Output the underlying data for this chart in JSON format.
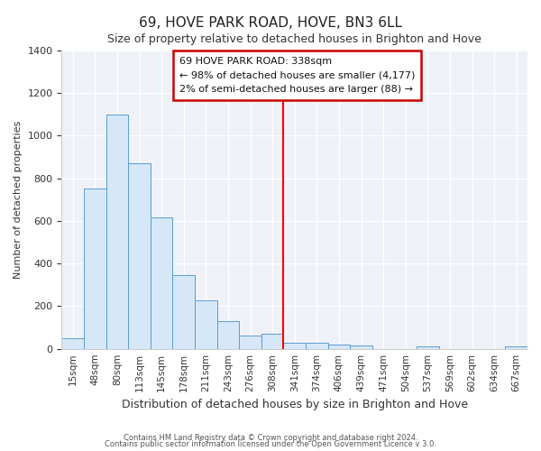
{
  "title": "69, HOVE PARK ROAD, HOVE, BN3 6LL",
  "subtitle": "Size of property relative to detached houses in Brighton and Hove",
  "xlabel": "Distribution of detached houses by size in Brighton and Hove",
  "ylabel": "Number of detached properties",
  "categories": [
    "15sqm",
    "48sqm",
    "80sqm",
    "113sqm",
    "145sqm",
    "178sqm",
    "211sqm",
    "243sqm",
    "276sqm",
    "308sqm",
    "341sqm",
    "374sqm",
    "406sqm",
    "439sqm",
    "471sqm",
    "504sqm",
    "537sqm",
    "569sqm",
    "602sqm",
    "634sqm",
    "667sqm"
  ],
  "values": [
    50,
    750,
    1100,
    870,
    615,
    345,
    228,
    130,
    62,
    72,
    28,
    30,
    20,
    15,
    0,
    0,
    12,
    0,
    0,
    0,
    12
  ],
  "bar_color": "#d6e8f7",
  "bar_edge_color": "#5b9bd5",
  "vline_color": "#ff0000",
  "vline_x_index": 10,
  "annotation_title": "69 HOVE PARK ROAD: 338sqm",
  "annotation_line1": "← 98% of detached houses are smaller (4,177)",
  "annotation_line2": "2% of semi-detached houses are larger (88) →",
  "annotation_box_edge": "#cc0000",
  "ylim": [
    0,
    1400
  ],
  "yticks": [
    0,
    200,
    400,
    600,
    800,
    1000,
    1200,
    1400
  ],
  "plot_bg_color": "#eef2f8",
  "fig_bg_color": "#ffffff",
  "footer1": "Contains HM Land Registry data © Crown copyright and database right 2024.",
  "footer2": "Contains public sector information licensed under the Open Government Licence v 3.0."
}
